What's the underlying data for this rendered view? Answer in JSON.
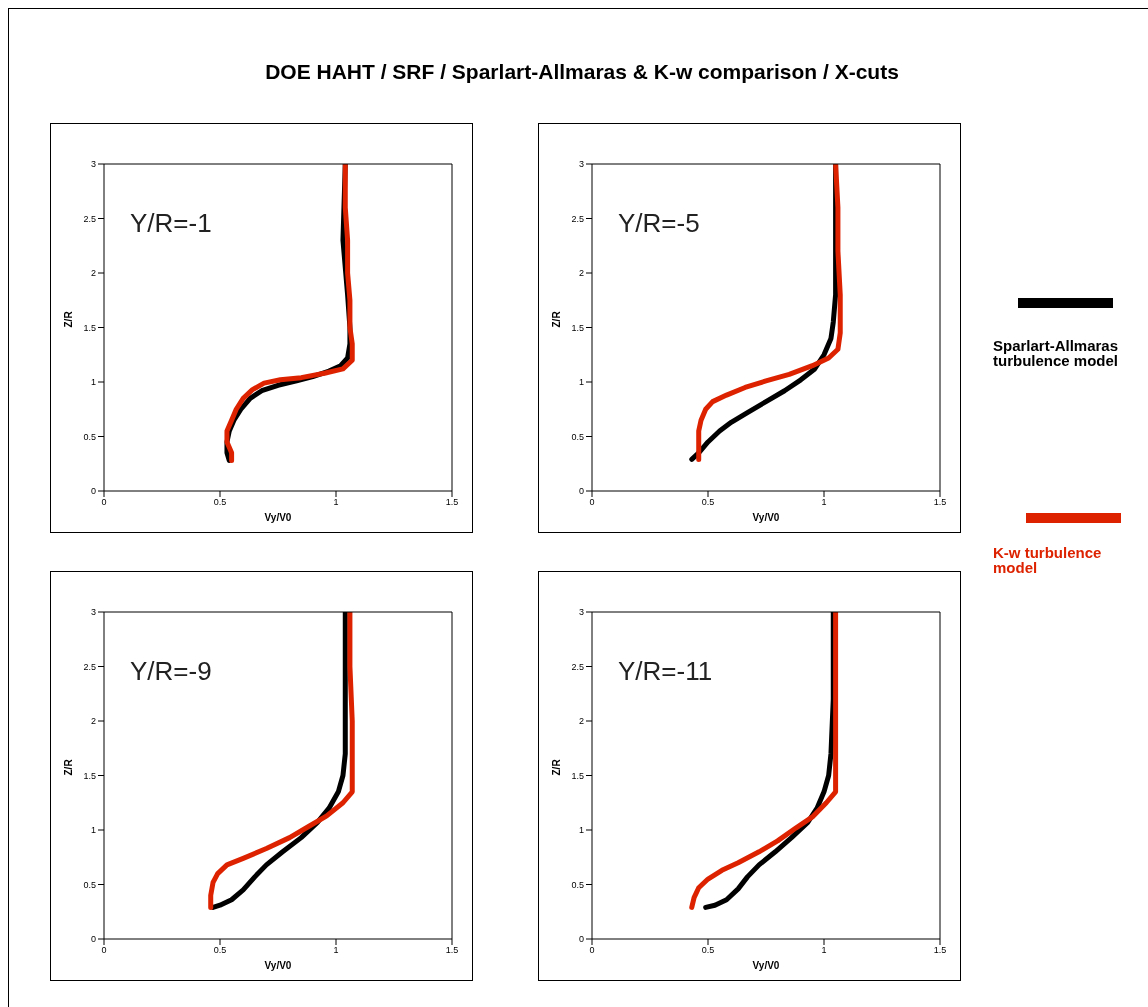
{
  "chart_data": [
    {
      "type": "line",
      "title": "DOE HAHT / SRF / Sparlart-Allmaras & K-w comparison / X-cuts",
      "xlabel": "Vy/V0",
      "ylabel": "Z/R",
      "annotations": [
        "Y/R=-1"
      ],
      "xlim": [
        0,
        1.5
      ],
      "xticks": [
        0,
        0.5,
        1,
        1.5
      ],
      "ylim": [
        0,
        3
      ],
      "yticks": [
        0,
        0.5,
        1,
        1.5,
        2,
        2.5,
        3
      ],
      "grid": false,
      "legend": false,
      "series": [
        {
          "color": "#000000",
          "x": [
            0.54,
            0.53,
            0.53,
            0.54,
            0.56,
            0.59,
            0.63,
            0.68,
            0.75,
            0.83,
            0.9,
            0.97,
            1.02,
            1.05,
            1.06,
            1.06,
            1.05,
            1.03,
            1.04
          ],
          "values": [
            0.28,
            0.35,
            0.45,
            0.55,
            0.65,
            0.75,
            0.85,
            0.92,
            0.97,
            1.01,
            1.05,
            1.1,
            1.15,
            1.22,
            1.35,
            1.5,
            1.8,
            2.3,
            3
          ]
        },
        {
          "color": "#dd2200",
          "x": [
            0.55,
            0.55,
            0.53,
            0.53,
            0.55,
            0.57,
            0.6,
            0.64,
            0.69,
            0.76,
            0.85,
            0.95,
            1.03,
            1.07,
            1.07,
            1.06,
            1.06,
            1.05,
            1.05,
            1.04,
            1.04
          ],
          "values": [
            0.28,
            0.35,
            0.45,
            0.55,
            0.65,
            0.75,
            0.85,
            0.93,
            0.99,
            1.02,
            1.04,
            1.08,
            1.12,
            1.2,
            1.35,
            1.5,
            1.75,
            2,
            2.3,
            2.6,
            3
          ]
        }
      ]
    },
    {
      "type": "line",
      "xlabel": "Vy/V0",
      "ylabel": "Z/R",
      "annotations": [
        "Y/R=-5"
      ],
      "xlim": [
        0,
        1.5
      ],
      "xticks": [
        0,
        0.5,
        1,
        1.5
      ],
      "ylim": [
        0,
        3
      ],
      "yticks": [
        0,
        0.5,
        1,
        1.5,
        2,
        2.5,
        3
      ],
      "grid": false,
      "legend": "right",
      "series": [
        {
          "name": "Sparlart-Allmaras turbulence model",
          "color": "#000000",
          "x": [
            0.43,
            0.46,
            0.5,
            0.55,
            0.6,
            0.67,
            0.75,
            0.83,
            0.9,
            0.96,
            1.0,
            1.03,
            1.04,
            1.05,
            1.05,
            1.05,
            1.05
          ],
          "values": [
            0.29,
            0.35,
            0.45,
            0.55,
            0.63,
            0.72,
            0.82,
            0.92,
            1.02,
            1.12,
            1.25,
            1.4,
            1.55,
            1.8,
            2.2,
            2.8,
            3
          ]
        },
        {
          "name": "K-w turbulence model",
          "color": "#dd2200",
          "x": [
            0.46,
            0.46,
            0.46,
            0.47,
            0.49,
            0.52,
            0.58,
            0.66,
            0.75,
            0.85,
            0.95,
            1.02,
            1.06,
            1.07,
            1.07,
            1.06,
            1.06,
            1.05
          ],
          "values": [
            0.29,
            0.4,
            0.55,
            0.65,
            0.75,
            0.82,
            0.88,
            0.95,
            1.01,
            1.07,
            1.15,
            1.22,
            1.3,
            1.45,
            1.8,
            2.2,
            2.6,
            3
          ]
        }
      ]
    },
    {
      "type": "line",
      "xlabel": "Vy/V0",
      "ylabel": "Z/R",
      "annotations": [
        "Y/R=-9"
      ],
      "xlim": [
        0,
        1.5
      ],
      "xticks": [
        0,
        0.5,
        1,
        1.5
      ],
      "ylim": [
        0,
        3
      ],
      "yticks": [
        0,
        0.5,
        1,
        1.5,
        2,
        2.5,
        3
      ],
      "grid": false,
      "legend": false,
      "series": [
        {
          "color": "#000000",
          "x": [
            0.47,
            0.5,
            0.55,
            0.6,
            0.65,
            0.7,
            0.77,
            0.85,
            0.92,
            0.97,
            1.01,
            1.03,
            1.04,
            1.04,
            1.04,
            1.04
          ],
          "values": [
            0.29,
            0.31,
            0.36,
            0.45,
            0.57,
            0.68,
            0.8,
            0.93,
            1.07,
            1.2,
            1.35,
            1.5,
            1.7,
            2.2,
            2.8,
            3
          ]
        },
        {
          "color": "#dd2200",
          "x": [
            0.46,
            0.46,
            0.47,
            0.49,
            0.53,
            0.6,
            0.7,
            0.8,
            0.88,
            0.96,
            1.03,
            1.07,
            1.07,
            1.07,
            1.06,
            1.06
          ],
          "values": [
            0.29,
            0.4,
            0.52,
            0.6,
            0.68,
            0.74,
            0.83,
            0.93,
            1.03,
            1.13,
            1.25,
            1.35,
            1.6,
            2,
            2.5,
            3
          ]
        }
      ]
    },
    {
      "type": "line",
      "xlabel": "Vy/V0",
      "ylabel": "Z/R",
      "annotations": [
        "Y/R=-11"
      ],
      "xlim": [
        0,
        1.5
      ],
      "xticks": [
        0,
        0.5,
        1,
        1.5
      ],
      "ylim": [
        0,
        3
      ],
      "yticks": [
        0,
        0.5,
        1,
        1.5,
        2,
        2.5,
        3
      ],
      "grid": false,
      "legend": false,
      "series": [
        {
          "color": "#000000",
          "x": [
            0.49,
            0.53,
            0.58,
            0.63,
            0.67,
            0.72,
            0.79,
            0.86,
            0.93,
            0.97,
            1.0,
            1.02,
            1.03,
            1.04,
            1.04
          ],
          "values": [
            0.29,
            0.31,
            0.36,
            0.46,
            0.57,
            0.68,
            0.8,
            0.93,
            1.07,
            1.2,
            1.35,
            1.5,
            1.7,
            2.2,
            3
          ]
        },
        {
          "color": "#dd2200",
          "x": [
            0.43,
            0.44,
            0.46,
            0.5,
            0.56,
            0.63,
            0.72,
            0.8,
            0.88,
            0.95,
            1.01,
            1.05,
            1.05,
            1.05,
            1.05,
            1.05
          ],
          "values": [
            0.29,
            0.38,
            0.47,
            0.55,
            0.63,
            0.7,
            0.8,
            0.9,
            1.02,
            1.12,
            1.25,
            1.35,
            1.6,
            2,
            2.5,
            3
          ]
        }
      ]
    }
  ]
}
